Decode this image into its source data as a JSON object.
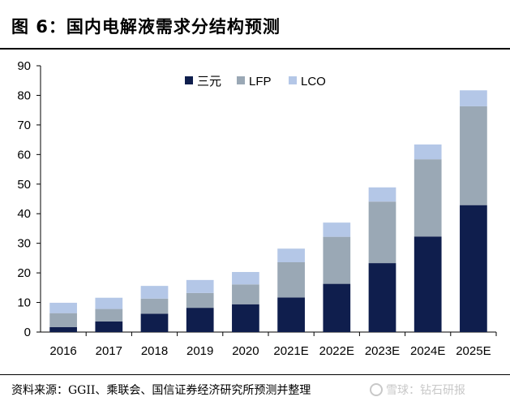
{
  "title": "图 6：国内电解液需求分结构预测",
  "source": "资料来源：GGII、乘联会、国信证券经济研究所预测并整理",
  "watermark": "雪球：钻石研报",
  "chart_data": {
    "type": "bar",
    "stacked": true,
    "categories": [
      "2016",
      "2017",
      "2018",
      "2019",
      "2020",
      "2021E",
      "2022E",
      "2023E",
      "2024E",
      "2025E"
    ],
    "series": [
      {
        "name": "三元",
        "color": "#0f1e4d",
        "values": [
          1.7,
          3.6,
          6.2,
          8.2,
          9.4,
          11.7,
          16.3,
          23.3,
          32.3,
          42.9
        ]
      },
      {
        "name": "LFP",
        "color": "#9aa8b5",
        "values": [
          4.7,
          4.2,
          5.1,
          5.0,
          6.7,
          11.9,
          15.9,
          20.8,
          26.1,
          33.4
        ]
      },
      {
        "name": "LCO",
        "color": "#b4c7e7",
        "values": [
          3.5,
          3.8,
          4.3,
          4.4,
          4.2,
          4.6,
          4.8,
          4.8,
          5.0,
          5.4
        ]
      }
    ],
    "ylim": [
      0,
      90
    ],
    "yticks": [
      0,
      10,
      20,
      30,
      40,
      50,
      60,
      70,
      80,
      90
    ],
    "xlabel": "",
    "ylabel": "",
    "legend": "top-center",
    "grid": false
  }
}
